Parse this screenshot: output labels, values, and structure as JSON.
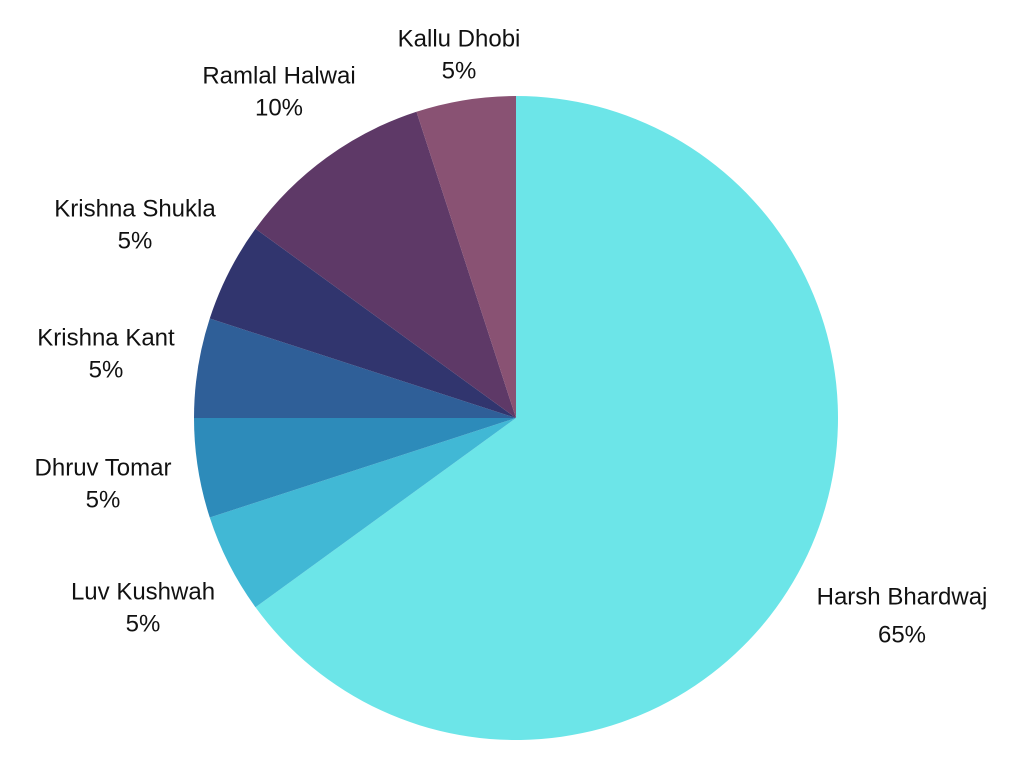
{
  "chart_data": {
    "type": "pie",
    "title": "",
    "legend": "none",
    "slices": [
      {
        "label": "Harsh Bhardwaj",
        "value": 65,
        "value_label": "65%",
        "color": "#6CE5E8"
      },
      {
        "label": "Luv Kushwah",
        "value": 5,
        "value_label": "5%",
        "color": "#41B8D5"
      },
      {
        "label": "Dhruv Tomar",
        "value": 5,
        "value_label": "5%",
        "color": "#2D8BBA"
      },
      {
        "label": "Krishna Kant",
        "value": 5,
        "value_label": "5%",
        "color": "#2F5F98"
      },
      {
        "label": "Krishna Shukla",
        "value": 5,
        "value_label": "5%",
        "color": "#31356E"
      },
      {
        "label": "Ramlal Halwai",
        "value": 10,
        "value_label": "10%",
        "color": "#5E3967"
      },
      {
        "label": "Kallu Dhobi",
        "value": 5,
        "value_label": "5%",
        "color": "#895273"
      }
    ]
  }
}
